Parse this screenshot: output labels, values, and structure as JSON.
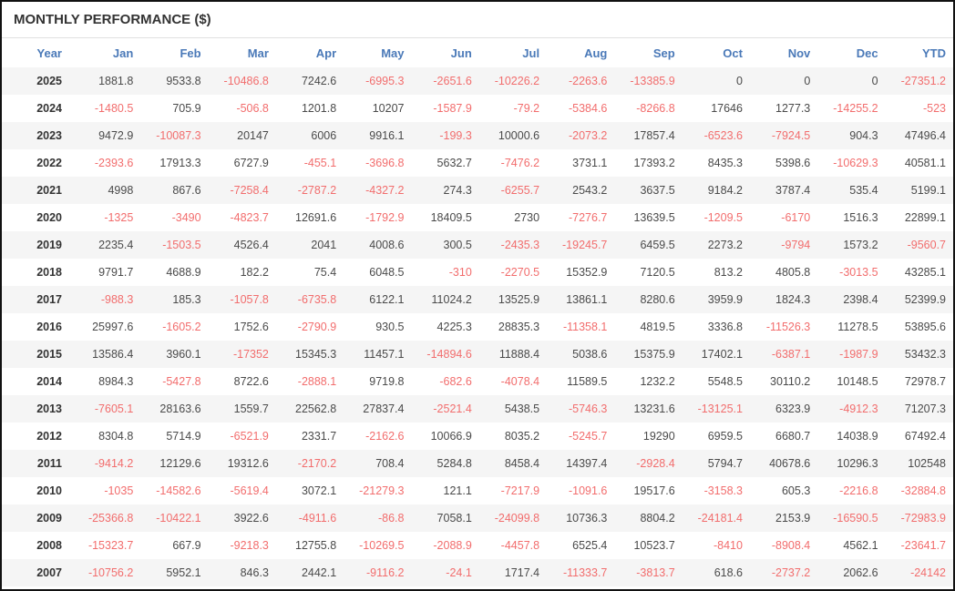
{
  "title": "MONTHLY PERFORMANCE ($)",
  "colors": {
    "header_blue": "#4a79b8",
    "negative_red": "#f26d6d",
    "positive_text": "#4a4a4a",
    "year_text": "#333333",
    "stripe_gray": "#f5f5f5",
    "frame_border": "#111111"
  },
  "table": {
    "columns": [
      "Year",
      "Jan",
      "Feb",
      "Mar",
      "Apr",
      "May",
      "Jun",
      "Jul",
      "Aug",
      "Sep",
      "Oct",
      "Nov",
      "Dec",
      "YTD"
    ],
    "rows": [
      {
        "year": "2025",
        "values": [
          "1881.8",
          "9533.8",
          "-10486.8",
          "7242.6",
          "-6995.3",
          "-2651.6",
          "-10226.2",
          "-2263.6",
          "-13385.9",
          "0",
          "0",
          "0",
          "-27351.2"
        ]
      },
      {
        "year": "2024",
        "values": [
          "-1480.5",
          "705.9",
          "-506.8",
          "1201.8",
          "10207",
          "-1587.9",
          "-79.2",
          "-5384.6",
          "-8266.8",
          "17646",
          "1277.3",
          "-14255.2",
          "-523"
        ]
      },
      {
        "year": "2023",
        "values": [
          "9472.9",
          "-10087.3",
          "20147",
          "6006",
          "9916.1",
          "-199.3",
          "10000.6",
          "-2073.2",
          "17857.4",
          "-6523.6",
          "-7924.5",
          "904.3",
          "47496.4"
        ]
      },
      {
        "year": "2022",
        "values": [
          "-2393.6",
          "17913.3",
          "6727.9",
          "-455.1",
          "-3696.8",
          "5632.7",
          "-7476.2",
          "3731.1",
          "17393.2",
          "8435.3",
          "5398.6",
          "-10629.3",
          "40581.1"
        ]
      },
      {
        "year": "2021",
        "values": [
          "4998",
          "867.6",
          "-7258.4",
          "-2787.2",
          "-4327.2",
          "274.3",
          "-6255.7",
          "2543.2",
          "3637.5",
          "9184.2",
          "3787.4",
          "535.4",
          "5199.1"
        ]
      },
      {
        "year": "2020",
        "values": [
          "-1325",
          "-3490",
          "-4823.7",
          "12691.6",
          "-1792.9",
          "18409.5",
          "2730",
          "-7276.7",
          "13639.5",
          "-1209.5",
          "-6170",
          "1516.3",
          "22899.1"
        ]
      },
      {
        "year": "2019",
        "values": [
          "2235.4",
          "-1503.5",
          "4526.4",
          "2041",
          "4008.6",
          "300.5",
          "-2435.3",
          "-19245.7",
          "6459.5",
          "2273.2",
          "-9794",
          "1573.2",
          "-9560.7"
        ]
      },
      {
        "year": "2018",
        "values": [
          "9791.7",
          "4688.9",
          "182.2",
          "75.4",
          "6048.5",
          "-310",
          "-2270.5",
          "15352.9",
          "7120.5",
          "813.2",
          "4805.8",
          "-3013.5",
          "43285.1"
        ]
      },
      {
        "year": "2017",
        "values": [
          "-988.3",
          "185.3",
          "-1057.8",
          "-6735.8",
          "6122.1",
          "11024.2",
          "13525.9",
          "13861.1",
          "8280.6",
          "3959.9",
          "1824.3",
          "2398.4",
          "52399.9"
        ]
      },
      {
        "year": "2016",
        "values": [
          "25997.6",
          "-1605.2",
          "1752.6",
          "-2790.9",
          "930.5",
          "4225.3",
          "28835.3",
          "-11358.1",
          "4819.5",
          "3336.8",
          "-11526.3",
          "11278.5",
          "53895.6"
        ]
      },
      {
        "year": "2015",
        "values": [
          "13586.4",
          "3960.1",
          "-17352",
          "15345.3",
          "11457.1",
          "-14894.6",
          "11888.4",
          "5038.6",
          "15375.9",
          "17402.1",
          "-6387.1",
          "-1987.9",
          "53432.3"
        ]
      },
      {
        "year": "2014",
        "values": [
          "8984.3",
          "-5427.8",
          "8722.6",
          "-2888.1",
          "9719.8",
          "-682.6",
          "-4078.4",
          "11589.5",
          "1232.2",
          "5548.5",
          "30110.2",
          "10148.5",
          "72978.7"
        ]
      },
      {
        "year": "2013",
        "values": [
          "-7605.1",
          "28163.6",
          "1559.7",
          "22562.8",
          "27837.4",
          "-2521.4",
          "5438.5",
          "-5746.3",
          "13231.6",
          "-13125.1",
          "6323.9",
          "-4912.3",
          "71207.3"
        ]
      },
      {
        "year": "2012",
        "values": [
          "8304.8",
          "5714.9",
          "-6521.9",
          "2331.7",
          "-2162.6",
          "10066.9",
          "8035.2",
          "-5245.7",
          "19290",
          "6959.5",
          "6680.7",
          "14038.9",
          "67492.4"
        ]
      },
      {
        "year": "2011",
        "values": [
          "-9414.2",
          "12129.6",
          "19312.6",
          "-2170.2",
          "708.4",
          "5284.8",
          "8458.4",
          "14397.4",
          "-2928.4",
          "5794.7",
          "40678.6",
          "10296.3",
          "102548"
        ]
      },
      {
        "year": "2010",
        "values": [
          "-1035",
          "-14582.6",
          "-5619.4",
          "3072.1",
          "-21279.3",
          "121.1",
          "-7217.9",
          "-1091.6",
          "19517.6",
          "-3158.3",
          "605.3",
          "-2216.8",
          "-32884.8"
        ]
      },
      {
        "year": "2009",
        "values": [
          "-25366.8",
          "-10422.1",
          "3922.6",
          "-4911.6",
          "-86.8",
          "7058.1",
          "-24099.8",
          "10736.3",
          "8804.2",
          "-24181.4",
          "2153.9",
          "-16590.5",
          "-72983.9"
        ]
      },
      {
        "year": "2008",
        "values": [
          "-15323.7",
          "667.9",
          "-9218.3",
          "12755.8",
          "-10269.5",
          "-2088.9",
          "-4457.8",
          "6525.4",
          "10523.7",
          "-8410",
          "-8908.4",
          "4562.1",
          "-23641.7"
        ]
      },
      {
        "year": "2007",
        "values": [
          "-10756.2",
          "5952.1",
          "846.3",
          "2442.1",
          "-9116.2",
          "-24.1",
          "1717.4",
          "-11333.7",
          "-3813.7",
          "618.6",
          "-2737.2",
          "2062.6",
          "-24142"
        ]
      }
    ]
  }
}
